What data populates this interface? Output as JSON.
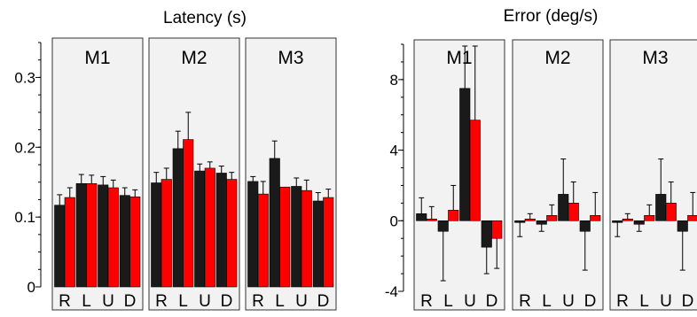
{
  "chart_data": [
    {
      "type": "bar",
      "title": "Latency (s)",
      "ylim": [
        0,
        0.35
      ],
      "yticks": [
        0,
        0.1,
        0.2,
        0.3
      ],
      "ytick_labels": [
        "0",
        "0.1",
        "0.2",
        "0.3"
      ],
      "series_colors": [
        "#1a1a1a",
        "#ff0000"
      ],
      "panels": [
        {
          "label": "M1",
          "categories": [
            "R",
            "L",
            "U",
            "D"
          ],
          "series": [
            {
              "values": [
                0.117,
                0.148,
                0.146,
                0.131
              ],
              "errors": [
                0.015,
                0.013,
                0.012,
                0.011
              ]
            },
            {
              "values": [
                0.128,
                0.148,
                0.142,
                0.129
              ],
              "errors": [
                0.014,
                0.012,
                0.011,
                0.01
              ]
            }
          ]
        },
        {
          "label": "M2",
          "categories": [
            "R",
            "L",
            "U",
            "D"
          ],
          "series": [
            {
              "values": [
                0.149,
                0.198,
                0.166,
                0.163
              ],
              "errors": [
                0.015,
                0.025,
                0.01,
                0.01
              ]
            },
            {
              "values": [
                0.154,
                0.211,
                0.17,
                0.154
              ],
              "errors": [
                0.016,
                0.039,
                0.009,
                0.01
              ]
            }
          ]
        },
        {
          "label": "M3",
          "categories": [
            "R",
            "L",
            "U",
            "D"
          ],
          "series": [
            {
              "values": [
                0.151,
                0.184,
                0.144,
                0.123
              ],
              "errors": [
                0.007,
                0.025,
                0.012,
                0.012
              ]
            },
            {
              "values": [
                0.133,
                0.143,
                0.138,
                0.128
              ],
              "errors": [
                0.018,
                0.0,
                0.015,
                0.012
              ]
            }
          ]
        }
      ]
    },
    {
      "type": "bar",
      "title": "Error (deg/s)",
      "ylim": [
        -4,
        10
      ],
      "yticks": [
        -4,
        0,
        4,
        8
      ],
      "ytick_labels": [
        "-4",
        "0",
        "4",
        "8"
      ],
      "series_colors": [
        "#1a1a1a",
        "#ff0000"
      ],
      "panels": [
        {
          "label": "M1",
          "categories": [
            "R",
            "L",
            "U",
            "D"
          ],
          "series": [
            {
              "values": [
                0.4,
                -0.6,
                7.5,
                -1.5
              ],
              "errors": [
                0.9,
                2.8,
                2.4,
                1.5
              ]
            },
            {
              "values": [
                0.1,
                0.6,
                5.7,
                -1.0
              ],
              "errors": [
                0.7,
                1.4,
                4.2,
                1.7
              ]
            }
          ]
        },
        {
          "label": "M2",
          "categories": [
            "R",
            "L",
            "U",
            "D"
          ],
          "series": [
            {
              "values": [
                -0.1,
                -0.2,
                1.5,
                -0.6
              ],
              "errors": [
                0.8,
                0.4,
                2.0,
                2.2
              ]
            },
            {
              "values": [
                0.1,
                0.3,
                1.0,
                0.3
              ],
              "errors": [
                0.3,
                0.6,
                1.2,
                1.3
              ]
            }
          ]
        },
        {
          "label": "M3",
          "categories": [
            "R",
            "L",
            "U",
            "D"
          ],
          "series": [
            {
              "values": [
                -0.1,
                -0.2,
                1.5,
                -0.6
              ],
              "errors": [
                0.8,
                0.4,
                2.0,
                2.2
              ]
            },
            {
              "values": [
                0.1,
                0.3,
                1.0,
                0.3
              ],
              "errors": [
                0.3,
                0.6,
                1.2,
                1.3
              ]
            }
          ]
        }
      ]
    }
  ]
}
